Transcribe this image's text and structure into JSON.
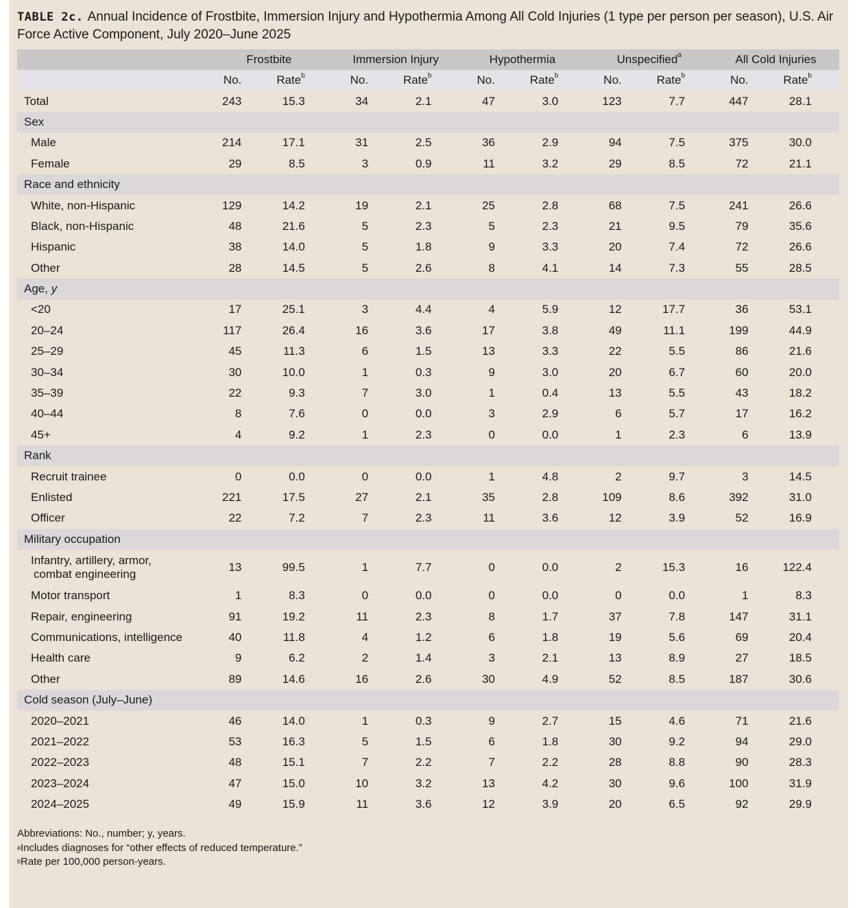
{
  "title": {
    "label": "TABLE 2c.",
    "text": "Annual Incidence of Frostbite, Immersion Injury and Hypothermia Among All Cold Injuries (1 type per person per season), U.S. Air Force Active Component, July 2020–June 2025"
  },
  "table": {
    "groups": [
      {
        "name": "Frostbite"
      },
      {
        "name": "Immersion Injury"
      },
      {
        "name": "Hypothermia"
      },
      {
        "name": "Unspecified",
        "note": "a"
      },
      {
        "name": "All Cold Injuries"
      }
    ],
    "subheaders": {
      "count": "No.",
      "rate": "Rate",
      "rate_note": "b"
    },
    "rows": [
      {
        "label": "Total",
        "cells": [
          "243",
          "15.3",
          "34",
          "2.1",
          "47",
          "3.0",
          "123",
          "7.7",
          "447",
          "28.1"
        ]
      },
      {
        "section": "Sex"
      },
      {
        "label": "Male",
        "cells": [
          "214",
          "17.1",
          "31",
          "2.5",
          "36",
          "2.9",
          "94",
          "7.5",
          "375",
          "30.0"
        ]
      },
      {
        "label": "Female",
        "cells": [
          "29",
          "8.5",
          "3",
          "0.9",
          "11",
          "3.2",
          "29",
          "8.5",
          "72",
          "21.1"
        ]
      },
      {
        "section": "Race and ethnicity"
      },
      {
        "label": "White, non-Hispanic",
        "cells": [
          "129",
          "14.2",
          "19",
          "2.1",
          "25",
          "2.8",
          "68",
          "7.5",
          "241",
          "26.6"
        ]
      },
      {
        "label": "Black, non-Hispanic",
        "cells": [
          "48",
          "21.6",
          "5",
          "2.3",
          "5",
          "2.3",
          "21",
          "9.5",
          "79",
          "35.6"
        ]
      },
      {
        "label": "Hispanic",
        "cells": [
          "38",
          "14.0",
          "5",
          "1.8",
          "9",
          "3.3",
          "20",
          "7.4",
          "72",
          "26.6"
        ]
      },
      {
        "label": "Other",
        "cells": [
          "28",
          "14.5",
          "5",
          "2.6",
          "8",
          "4.1",
          "14",
          "7.3",
          "55",
          "28.5"
        ]
      },
      {
        "section": "Age,",
        "unit": "y"
      },
      {
        "label": "<20",
        "cells": [
          "17",
          "25.1",
          "3",
          "4.4",
          "4",
          "5.9",
          "12",
          "17.7",
          "36",
          "53.1"
        ]
      },
      {
        "label": "20–24",
        "cells": [
          "117",
          "26.4",
          "16",
          "3.6",
          "17",
          "3.8",
          "49",
          "11.1",
          "199",
          "44.9"
        ]
      },
      {
        "label": "25–29",
        "cells": [
          "45",
          "11.3",
          "6",
          "1.5",
          "13",
          "3.3",
          "22",
          "5.5",
          "86",
          "21.6"
        ]
      },
      {
        "label": "30–34",
        "cells": [
          "30",
          "10.0",
          "1",
          "0.3",
          "9",
          "3.0",
          "20",
          "6.7",
          "60",
          "20.0"
        ]
      },
      {
        "label": "35–39",
        "cells": [
          "22",
          "9.3",
          "7",
          "3.0",
          "1",
          "0.4",
          "13",
          "5.5",
          "43",
          "18.2"
        ]
      },
      {
        "label": "40–44",
        "cells": [
          "8",
          "7.6",
          "0",
          "0.0",
          "3",
          "2.9",
          "6",
          "5.7",
          "17",
          "16.2"
        ]
      },
      {
        "label": "45+",
        "cells": [
          "4",
          "9.2",
          "1",
          "2.3",
          "0",
          "0.0",
          "1",
          "2.3",
          "6",
          "13.9"
        ]
      },
      {
        "section": "Rank"
      },
      {
        "label": "Recruit trainee",
        "cells": [
          "0",
          "0.0",
          "0",
          "0.0",
          "1",
          "4.8",
          "2",
          "9.7",
          "3",
          "14.5"
        ]
      },
      {
        "label": "Enlisted",
        "cells": [
          "221",
          "17.5",
          "27",
          "2.1",
          "35",
          "2.8",
          "109",
          "8.6",
          "392",
          "31.0"
        ]
      },
      {
        "label": "Officer",
        "cells": [
          "22",
          "7.2",
          "7",
          "2.3",
          "11",
          "3.6",
          "12",
          "3.9",
          "52",
          "16.9"
        ]
      },
      {
        "section": "Military occupation"
      },
      {
        "label": [
          "Infantry, artillery, armor,",
          "combat engineering"
        ],
        "cells": [
          "13",
          "99.5",
          "1",
          "7.7",
          "0",
          "0.0",
          "2",
          "15.3",
          "16",
          "122.4"
        ]
      },
      {
        "label": "Motor transport",
        "cells": [
          "1",
          "8.3",
          "0",
          "0.0",
          "0",
          "0.0",
          "0",
          "0.0",
          "1",
          "8.3"
        ]
      },
      {
        "label": "Repair, engineering",
        "cells": [
          "91",
          "19.2",
          "11",
          "2.3",
          "8",
          "1.7",
          "37",
          "7.8",
          "147",
          "31.1"
        ]
      },
      {
        "label": "Communications, intelligence",
        "cells": [
          "40",
          "11.8",
          "4",
          "1.2",
          "6",
          "1.8",
          "19",
          "5.6",
          "69",
          "20.4"
        ]
      },
      {
        "label": "Health care",
        "cells": [
          "9",
          "6.2",
          "2",
          "1.4",
          "3",
          "2.1",
          "13",
          "8.9",
          "27",
          "18.5"
        ]
      },
      {
        "label": "Other",
        "cells": [
          "89",
          "14.6",
          "16",
          "2.6",
          "30",
          "4.9",
          "52",
          "8.5",
          "187",
          "30.6"
        ]
      },
      {
        "section": "Cold season (July–June)"
      },
      {
        "label": "2020–2021",
        "cells": [
          "46",
          "14.0",
          "1",
          "0.3",
          "9",
          "2.7",
          "15",
          "4.6",
          "71",
          "21.6"
        ]
      },
      {
        "label": "2021–2022",
        "cells": [
          "53",
          "16.3",
          "5",
          "1.5",
          "6",
          "1.8",
          "30",
          "9.2",
          "94",
          "29.0"
        ]
      },
      {
        "label": "2022–2023",
        "cells": [
          "48",
          "15.1",
          "7",
          "2.2",
          "7",
          "2.2",
          "28",
          "8.8",
          "90",
          "28.3"
        ]
      },
      {
        "label": "2023–2024",
        "cells": [
          "47",
          "15.0",
          "10",
          "3.2",
          "13",
          "4.2",
          "30",
          "9.6",
          "100",
          "31.9"
        ]
      },
      {
        "label": "2024–2025",
        "cells": [
          "49",
          "15.9",
          "11",
          "3.6",
          "12",
          "3.9",
          "20",
          "6.5",
          "92",
          "29.9"
        ]
      }
    ]
  },
  "footnotes": {
    "abbreviations": "Abbreviations: No., number; y, years.",
    "notes": [
      {
        "mark": "a",
        "text": "Includes diagnoses for “other effects of reduced temperature.”"
      },
      {
        "mark": "b",
        "text": "Rate per 100,000 person-years."
      }
    ]
  }
}
